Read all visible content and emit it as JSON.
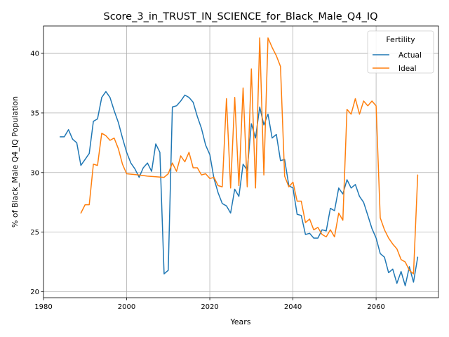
{
  "chart_data": {
    "type": "line",
    "title": "Score_3_in_TRUST_IN_SCIENCE_for_Black_Male_Q4_IQ",
    "xlabel": "Years",
    "ylabel": "% of Black_Male Q4_IQ Population",
    "xlim": [
      1980,
      2075
    ],
    "ylim": [
      19.5,
      42.3
    ],
    "xticks": [
      1980,
      2000,
      2020,
      2040,
      2060
    ],
    "yticks": [
      20,
      25,
      30,
      35,
      40
    ],
    "grid": true,
    "legend": {
      "title": "Fertility",
      "placement": "top-right"
    },
    "series": [
      {
        "name": "Actual",
        "color": "#1f77b4",
        "x": [
          1984,
          1985,
          1986,
          1987,
          1988,
          1989,
          1990,
          1991,
          1992,
          1993,
          1994,
          1995,
          1996,
          1997,
          1998,
          1999,
          2000,
          2001,
          2002,
          2003,
          2004,
          2005,
          2006,
          2007,
          2008,
          2009,
          2010,
          2011,
          2012,
          2013,
          2014,
          2015,
          2016,
          2017,
          2018,
          2019,
          2020,
          2021,
          2022,
          2023,
          2024,
          2025,
          2026,
          2027,
          2028,
          2029,
          2030,
          2031,
          2032,
          2033,
          2034,
          2035,
          2036,
          2037,
          2038,
          2039,
          2040,
          2041,
          2042,
          2043,
          2044,
          2045,
          2046,
          2047,
          2048,
          2049,
          2050,
          2051,
          2052,
          2053,
          2054,
          2055,
          2056,
          2057,
          2058,
          2059,
          2060,
          2061,
          2062,
          2063,
          2064,
          2065,
          2066,
          2067,
          2068,
          2069,
          2070
        ],
        "values": [
          33.0,
          33.0,
          33.6,
          32.8,
          32.5,
          30.6,
          31.1,
          31.6,
          34.3,
          34.5,
          36.3,
          36.8,
          36.3,
          35.2,
          34.2,
          32.9,
          31.7,
          30.8,
          30.3,
          29.6,
          30.4,
          30.8,
          30.1,
          32.4,
          31.7,
          21.5,
          21.8,
          35.5,
          35.6,
          36.0,
          36.5,
          36.3,
          35.9,
          34.7,
          33.7,
          32.3,
          31.5,
          29.5,
          28.3,
          27.4,
          27.2,
          26.6,
          28.6,
          28.0,
          30.7,
          30.2,
          34.1,
          32.9,
          35.5,
          34.0,
          34.9,
          32.9,
          33.2,
          31.0,
          31.1,
          28.9,
          28.7,
          26.5,
          26.4,
          24.8,
          24.9,
          24.5,
          24.5,
          25.2,
          25.1,
          27.0,
          26.8,
          28.7,
          28.2,
          29.4,
          28.7,
          29.0,
          28.0,
          27.5,
          26.4,
          25.3,
          24.5,
          23.2,
          22.9,
          21.6,
          21.9,
          20.7,
          21.7,
          20.5,
          22.1,
          20.8,
          22.9
        ]
      },
      {
        "name": "Ideal",
        "color": "#ff7f0e",
        "x": [
          1989,
          1990,
          1991,
          1992,
          1993,
          1994,
          1995,
          1996,
          1997,
          1998,
          1999,
          2000,
          2003,
          2005,
          2009,
          2010,
          2011,
          2012,
          2013,
          2014,
          2015,
          2016,
          2017,
          2018,
          2019,
          2020,
          2021,
          2022,
          2023,
          2024,
          2025,
          2026,
          2027,
          2028,
          2029,
          2030,
          2031,
          2032,
          2033,
          2034,
          2035,
          2036,
          2037,
          2038,
          2039,
          2040,
          2041,
          2042,
          2043,
          2044,
          2045,
          2046,
          2047,
          2048,
          2049,
          2050,
          2051,
          2052,
          2053,
          2054,
          2055,
          2056,
          2057,
          2058,
          2059,
          2060,
          2061,
          2062,
          2063,
          2064,
          2065,
          2066,
          2067,
          2068,
          2069,
          2070
        ],
        "values": [
          26.6,
          27.3,
          27.3,
          30.7,
          30.6,
          33.3,
          33.1,
          32.7,
          32.9,
          32.0,
          30.7,
          29.9,
          29.8,
          29.7,
          29.6,
          29.9,
          30.8,
          30.1,
          31.4,
          30.9,
          31.7,
          30.4,
          30.4,
          29.8,
          29.9,
          29.5,
          29.6,
          28.9,
          28.8,
          36.2,
          28.7,
          36.3,
          28.9,
          37.1,
          28.8,
          38.7,
          28.7,
          41.3,
          29.8,
          41.3,
          40.5,
          39.8,
          38.9,
          29.7,
          28.8,
          29.2,
          27.6,
          27.6,
          25.8,
          26.1,
          25.2,
          25.4,
          24.8,
          24.6,
          25.2,
          24.6,
          26.6,
          26.0,
          35.3,
          34.9,
          36.2,
          34.9,
          36.0,
          35.6,
          36.0,
          35.6,
          26.2,
          25.2,
          24.5,
          24.0,
          23.6,
          22.7,
          22.5,
          21.8,
          21.5,
          29.8
        ]
      }
    ]
  }
}
